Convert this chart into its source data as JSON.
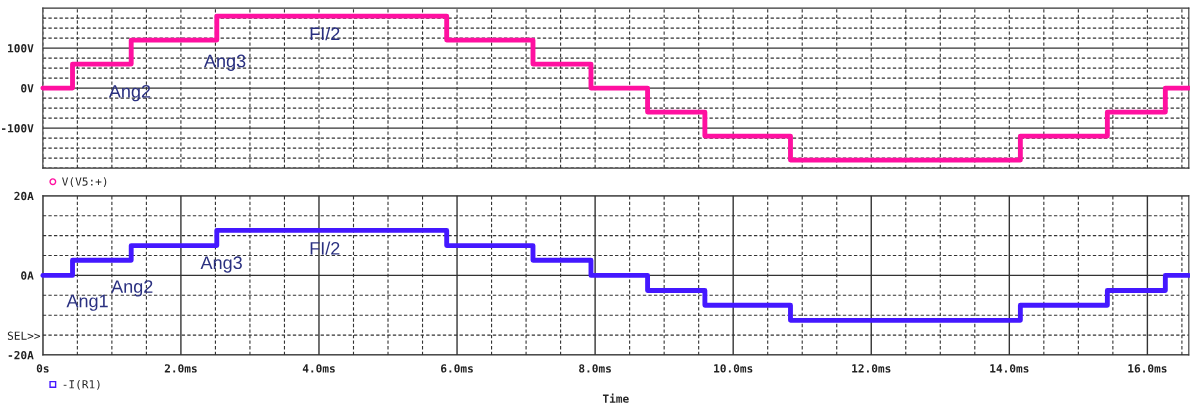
{
  "chart_data": [
    {
      "type": "step",
      "ylim": [
        -200,
        200
      ],
      "xlim": [
        0,
        16.6
      ],
      "yticks": [
        {
          "value": -200,
          "label": null
        },
        {
          "value": -175,
          "label": null
        },
        {
          "value": -150,
          "label": null
        },
        {
          "value": -125,
          "label": null
        },
        {
          "value": -100,
          "label": "-100V"
        },
        {
          "value": -75,
          "label": null
        },
        {
          "value": -50,
          "label": null
        },
        {
          "value": -25,
          "label": null
        },
        {
          "value": 0,
          "label": "0V"
        },
        {
          "value": 25,
          "label": null
        },
        {
          "value": 50,
          "label": null
        },
        {
          "value": 75,
          "label": null
        },
        {
          "value": 100,
          "label": "100V"
        },
        {
          "value": 125,
          "label": null
        },
        {
          "value": 150,
          "label": null
        },
        {
          "value": 175,
          "label": null
        }
      ],
      "xticks": [
        {
          "value": 0,
          "label": null
        },
        {
          "value": 0.5,
          "label": null
        },
        {
          "value": 1,
          "label": null
        },
        {
          "value": 1.5,
          "label": null
        },
        {
          "value": 2,
          "label": null
        },
        {
          "value": 2.5,
          "label": null
        },
        {
          "value": 3,
          "label": null
        },
        {
          "value": 3.5,
          "label": null
        },
        {
          "value": 4,
          "label": null
        },
        {
          "value": 4.5,
          "label": null
        },
        {
          "value": 5,
          "label": null
        },
        {
          "value": 5.5,
          "label": null
        },
        {
          "value": 6,
          "label": null
        },
        {
          "value": 6.5,
          "label": null
        },
        {
          "value": 7,
          "label": null
        },
        {
          "value": 7.5,
          "label": null
        },
        {
          "value": 8,
          "label": null
        },
        {
          "value": 8.5,
          "label": null
        },
        {
          "value": 9,
          "label": null
        },
        {
          "value": 9.5,
          "label": null
        },
        {
          "value": 10,
          "label": null
        },
        {
          "value": 10.5,
          "label": null
        },
        {
          "value": 11,
          "label": null
        },
        {
          "value": 11.5,
          "label": null
        },
        {
          "value": 12,
          "label": null
        },
        {
          "value": 12.5,
          "label": null
        },
        {
          "value": 13,
          "label": null
        },
        {
          "value": 13.5,
          "label": null
        },
        {
          "value": 14,
          "label": null
        },
        {
          "value": 14.5,
          "label": null
        },
        {
          "value": 15,
          "label": null
        },
        {
          "value": 15.5,
          "label": null
        },
        {
          "value": 16,
          "label": null
        },
        {
          "value": 16.5,
          "label": null
        }
      ],
      "tick_labels": "y",
      "grid": true,
      "legend": "bottom left",
      "marker": "none",
      "series": [
        {
          "name": "V(V5:+)",
          "color": "#ff10a0",
          "x": [
            0,
            0.43,
            1.28,
            2.52,
            5.85,
            7.1,
            7.94,
            8.76,
            9.59,
            10.83,
            14.16,
            15.42,
            16.26,
            16.6
          ],
          "values": [
            0,
            60,
            120,
            180,
            120,
            60,
            0,
            -60,
            -120,
            -180,
            -120,
            -60,
            0,
            0
          ]
        }
      ],
      "annotations": [
        "Ang2",
        "Ang3",
        "FI/2"
      ]
    },
    {
      "type": "step",
      "ylim": [
        -20,
        20
      ],
      "xlim": [
        0,
        16.6
      ],
      "yticks": [
        {
          "value": -20,
          "label": "-20A"
        },
        {
          "value": -15,
          "label": null
        },
        {
          "value": -10,
          "label": null
        },
        {
          "value": -5,
          "label": null
        },
        {
          "value": 0,
          "label": "0A"
        },
        {
          "value": 5,
          "label": null
        },
        {
          "value": 10,
          "label": null
        },
        {
          "value": 15,
          "label": null
        },
        {
          "value": 20,
          "label": "20A"
        }
      ],
      "xticks": [
        {
          "value": 0,
          "label": "0s"
        },
        {
          "value": 0.5,
          "label": null
        },
        {
          "value": 1,
          "label": null
        },
        {
          "value": 1.5,
          "label": null
        },
        {
          "value": 2,
          "label": "2.0ms"
        },
        {
          "value": 2.5,
          "label": null
        },
        {
          "value": 3,
          "label": null
        },
        {
          "value": 3.5,
          "label": null
        },
        {
          "value": 4,
          "label": "4.0ms"
        },
        {
          "value": 4.5,
          "label": null
        },
        {
          "value": 5,
          "label": null
        },
        {
          "value": 5.5,
          "label": null
        },
        {
          "value": 6,
          "label": "6.0ms"
        },
        {
          "value": 6.5,
          "label": null
        },
        {
          "value": 7,
          "label": null
        },
        {
          "value": 7.5,
          "label": null
        },
        {
          "value": 8,
          "label": "8.0ms"
        },
        {
          "value": 8.5,
          "label": null
        },
        {
          "value": 9,
          "label": null
        },
        {
          "value": 9.5,
          "label": null
        },
        {
          "value": 10,
          "label": "10.0ms"
        },
        {
          "value": 10.5,
          "label": null
        },
        {
          "value": 11,
          "label": null
        },
        {
          "value": 11.5,
          "label": null
        },
        {
          "value": 12,
          "label": "12.0ms"
        },
        {
          "value": 12.5,
          "label": null
        },
        {
          "value": 13,
          "label": null
        },
        {
          "value": 13.5,
          "label": null
        },
        {
          "value": 14,
          "label": "14.0ms"
        },
        {
          "value": 14.5,
          "label": null
        },
        {
          "value": 15,
          "label": null
        },
        {
          "value": 15.5,
          "label": null
        },
        {
          "value": 16,
          "label": "16.0ms"
        },
        {
          "value": 16.5,
          "label": null
        }
      ],
      "xlabel": "Time",
      "grid": true,
      "legend": "bottom left",
      "marker": "none",
      "series": [
        {
          "name": "-I(R1)",
          "color": "#4418ff",
          "x": [
            0,
            0.43,
            1.28,
            2.52,
            5.85,
            7.1,
            7.94,
            8.76,
            9.59,
            10.83,
            14.16,
            15.42,
            16.26,
            16.6
          ],
          "values": [
            0,
            3.8,
            7.5,
            11.3,
            7.5,
            3.8,
            0,
            -3.8,
            -7.5,
            -11.3,
            -7.5,
            -3.8,
            0,
            0
          ]
        }
      ],
      "annotations": [
        "Ang1",
        "Ang2",
        "Ang3",
        "FI/2",
        "SEL>>"
      ]
    }
  ]
}
